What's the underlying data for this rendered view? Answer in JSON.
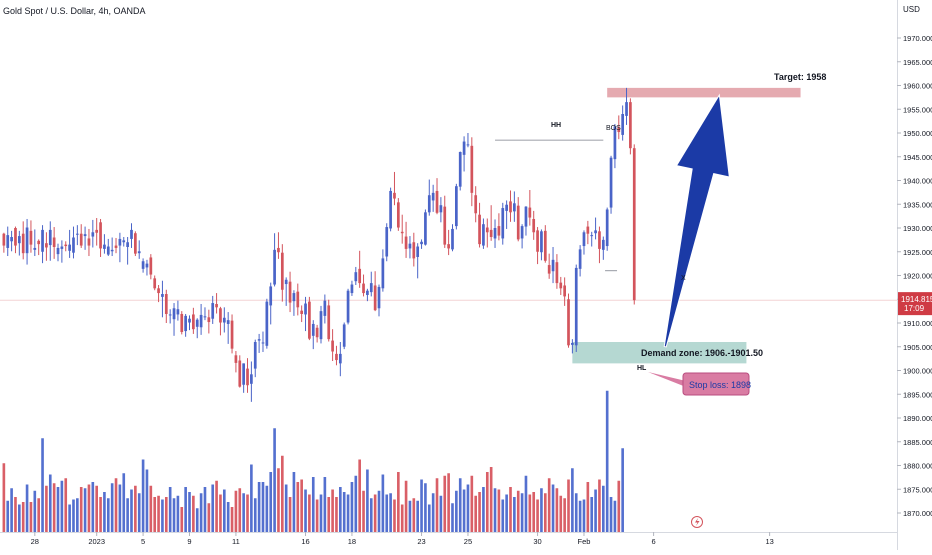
{
  "header": {
    "title": "Gold Spot / U.S. Dollar, 4h, OANDA",
    "currency": "USD"
  },
  "colors": {
    "up": "#4a64c8",
    "down": "#d3545c",
    "up_volume": "#5470cf",
    "down_volume": "#d95f67",
    "target_zone": "#e5aab0",
    "demand_zone": "#b5d8d2",
    "stop_loss": "#d97ca3",
    "arrow": "#1b3aa6",
    "price_tag": "#cf3b44"
  },
  "chart_data": {
    "type": "candlestick",
    "symbol": "XAUUSD",
    "timeframe": "4h",
    "y_axis": {
      "ylim": [
        1866,
        1978
      ],
      "ticks": [
        1970,
        1965,
        1960,
        1955,
        1950,
        1945,
        1940,
        1935,
        1930,
        1925,
        1920,
        1915,
        1910,
        1905,
        1900,
        1895,
        1890,
        1885,
        1880,
        1875,
        1870
      ],
      "tick_labels": [
        "1970.000",
        "1965.000",
        "1960.000",
        "1955.000",
        "1950.000",
        "1945.000",
        "1940.000",
        "1935.000",
        "1930.000",
        "1925.000",
        "1920.000",
        "1915.000",
        "1910.000",
        "1905.000",
        "1900.000",
        "1895.000",
        "1890.000",
        "1885.000",
        "1880.000",
        "1875.000",
        "1870.000"
      ]
    },
    "x_axis": {
      "range": [
        -1,
        180
      ],
      "ticks": [
        {
          "label": "28",
          "x": 8
        },
        {
          "label": "2023",
          "x": 24
        },
        {
          "label": "5",
          "x": 36
        },
        {
          "label": "9",
          "x": 48
        },
        {
          "label": "11",
          "x": 60
        },
        {
          "label": "16",
          "x": 78
        },
        {
          "label": "18",
          "x": 90
        },
        {
          "label": "23",
          "x": 108
        },
        {
          "label": "25",
          "x": 120
        },
        {
          "label": "30",
          "x": 138
        },
        {
          "label": "Feb",
          "x": 150
        },
        {
          "label": "6",
          "x": 168
        },
        {
          "label": "13",
          "x": 198
        }
      ]
    },
    "last_price": {
      "value": 1914.815,
      "label": "1914.815",
      "countdown": "17:09"
    },
    "levels": {
      "target": {
        "label": "Target: 1958",
        "low": 1957.5,
        "high": 1959.5,
        "x_start": 156,
        "x_end": 206
      },
      "demand_zone": {
        "label": "Demand zone: 1906.-1901.50",
        "low": 1901.5,
        "high": 1906,
        "x_start": 147,
        "x_end": 192
      },
      "stop_loss": {
        "label": "Stop loss: 1898",
        "value": 1898
      },
      "bos": {
        "label": "BOS",
        "value": 1948.5,
        "x_start": 127,
        "x_end": 155
      },
      "hh": {
        "label": "HH",
        "value": 1948.8,
        "x": 128
      },
      "hl": {
        "label": "HL",
        "value": 1903.5,
        "x": 147
      },
      "x_mark": {
        "label": "X",
        "value": 1921,
        "x": 157
      }
    },
    "arrow": {
      "from_x": 171,
      "from_y": 1905,
      "to_x": 185,
      "to_y": 1958
    },
    "candles": [
      [
        1928.8,
        1929.0,
        1924.8,
        1926.3
      ],
      [
        1925.8,
        1930.3,
        1924.1,
        1928.5
      ],
      [
        1927.2,
        1929.4,
        1925.1,
        1928.1
      ],
      [
        1930.0,
        1930.3,
        1924.7,
        1926.3
      ],
      [
        1926.8,
        1929.4,
        1924.2,
        1928.3
      ],
      [
        1928.8,
        1931.4,
        1923.4,
        1924.7
      ],
      [
        1924.7,
        1931.9,
        1922.3,
        1930.1
      ],
      [
        1929.4,
        1931.6,
        1924.8,
        1926.5
      ],
      [
        1925.4,
        1929.7,
        1924.1,
        1925.8
      ],
      [
        1927.3,
        1927.6,
        1924.3,
        1926.6
      ],
      [
        1925.0,
        1930.6,
        1922.6,
        1929.6
      ],
      [
        1926.8,
        1929.1,
        1923.1,
        1925.9
      ],
      [
        1926.4,
        1931.4,
        1923.1,
        1929.6
      ],
      [
        1928.0,
        1930.2,
        1923.5,
        1926.0
      ],
      [
        1924.5,
        1926.7,
        1923.0,
        1925.8
      ],
      [
        1925.6,
        1927.4,
        1922.7,
        1926.1
      ],
      [
        1926.5,
        1927.2,
        1925.1,
        1926.2
      ],
      [
        1925.2,
        1929.6,
        1923.7,
        1926.5
      ],
      [
        1924.8,
        1930.3,
        1923.6,
        1928.0
      ],
      [
        1928.6,
        1930.6,
        1926.4,
        1928.8
      ],
      [
        1928.8,
        1930.8,
        1925.8,
        1926.3
      ],
      [
        1928.3,
        1930.3,
        1925.4,
        1928.7
      ],
      [
        1927.8,
        1929.8,
        1924.1,
        1926.3
      ],
      [
        1928.2,
        1931.7,
        1925.9,
        1929.1
      ],
      [
        1929.6,
        1932.1,
        1926.3,
        1929.0
      ],
      [
        1931.2,
        1931.9,
        1923.9,
        1925.7
      ],
      [
        1925.6,
        1928.7,
        1924.6,
        1926.5
      ],
      [
        1924.4,
        1927.7,
        1924.1,
        1926.1
      ],
      [
        1925.1,
        1928.0,
        1924.1,
        1925.4
      ],
      [
        1926.3,
        1927.9,
        1924.7,
        1925.8
      ],
      [
        1926.3,
        1929.0,
        1922.8,
        1927.7
      ],
      [
        1927.0,
        1928.1,
        1926.1,
        1927.4
      ],
      [
        1926.0,
        1928.1,
        1922.3,
        1927.0
      ],
      [
        1927.7,
        1931.0,
        1925.8,
        1929.6
      ],
      [
        1928.9,
        1929.3,
        1924.1,
        1924.6
      ],
      [
        1924.7,
        1927.4,
        1923.5,
        1925.1
      ],
      [
        1921.4,
        1923.6,
        1920.6,
        1923.0
      ],
      [
        1921.7,
        1923.3,
        1920.0,
        1922.5
      ],
      [
        1923.8,
        1924.5,
        1919.2,
        1920.2
      ],
      [
        1919.4,
        1920.0,
        1916.9,
        1917.3
      ],
      [
        1917.3,
        1918.0,
        1914.4,
        1916.3
      ],
      [
        1915.5,
        1918.9,
        1911.2,
        1916.1
      ],
      [
        1916.1,
        1917.0,
        1910.0,
        1911.9
      ],
      [
        1911.7,
        1912.9,
        1909.9,
        1911.8
      ],
      [
        1910.8,
        1914.2,
        1907.3,
        1913.1
      ],
      [
        1911.8,
        1914.7,
        1910.5,
        1912.9
      ],
      [
        1911.9,
        1912.5,
        1907.6,
        1908.1
      ],
      [
        1908.3,
        1911.9,
        1907.1,
        1911.5
      ],
      [
        1910.1,
        1911.6,
        1908.5,
        1910.9
      ],
      [
        1911.8,
        1913.2,
        1907.7,
        1908.7
      ],
      [
        1909.2,
        1911.0,
        1906.8,
        1910.7
      ],
      [
        1909.1,
        1914.0,
        1907.5,
        1911.7
      ],
      [
        1911.3,
        1913.3,
        1910.6,
        1911.4
      ],
      [
        1911.2,
        1912.8,
        1907.8,
        1910.2
      ],
      [
        1910.9,
        1915.7,
        1909.8,
        1914.2
      ],
      [
        1914.0,
        1916.3,
        1912.0,
        1913.3
      ],
      [
        1913.1,
        1913.4,
        1907.4,
        1910.1
      ],
      [
        1910.1,
        1913.3,
        1908.0,
        1911.1
      ],
      [
        1909.8,
        1912.3,
        1905.6,
        1910.6
      ],
      [
        1910.5,
        1911.8,
        1903.6,
        1904.6
      ],
      [
        1903.2,
        1904.1,
        1899.6,
        1901.6
      ],
      [
        1902.1,
        1903.2,
        1896.4,
        1896.6
      ],
      [
        1897.0,
        1901.5,
        1895.3,
        1901.5
      ],
      [
        1900.4,
        1902.6,
        1895.3,
        1896.9
      ],
      [
        1897.2,
        1901.9,
        1893.4,
        1899.2
      ],
      [
        1900.4,
        1906.5,
        1898.6,
        1906.0
      ],
      [
        1906.3,
        1907.7,
        1903.7,
        1906.6
      ],
      [
        1905.9,
        1908.2,
        1903.9,
        1905.9
      ],
      [
        1905.2,
        1915.1,
        1904.6,
        1914.5
      ],
      [
        1913.7,
        1918.5,
        1909.7,
        1917.7
      ],
      [
        1918.1,
        1928.9,
        1917.7,
        1925.4
      ],
      [
        1925.8,
        1929.1,
        1923.5,
        1924.9
      ],
      [
        1924.8,
        1926.6,
        1914.5,
        1917.0
      ],
      [
        1918.2,
        1919.6,
        1913.6,
        1919.1
      ],
      [
        1918.7,
        1920.8,
        1912.3,
        1914.3
      ],
      [
        1914.6,
        1916.9,
        1911.5,
        1916.3
      ],
      [
        1916.6,
        1918.3,
        1911.6,
        1913.3
      ],
      [
        1912.6,
        1913.7,
        1910.2,
        1911.9
      ],
      [
        1911.8,
        1915.5,
        1908.3,
        1914.1
      ],
      [
        1914.5,
        1915.5,
        1906.4,
        1906.7
      ],
      [
        1907.3,
        1910.6,
        1904.5,
        1909.8
      ],
      [
        1909.0,
        1909.6,
        1905.9,
        1907.0
      ],
      [
        1906.6,
        1913.6,
        1905.7,
        1912.5
      ],
      [
        1911.5,
        1916.0,
        1909.9,
        1914.7
      ],
      [
        1913.7,
        1914.9,
        1906.1,
        1906.6
      ],
      [
        1906.3,
        1908.7,
        1902.0,
        1904.0
      ],
      [
        1903.5,
        1905.2,
        1901.1,
        1902.2
      ],
      [
        1901.5,
        1906.0,
        1898.8,
        1903.5
      ],
      [
        1905.0,
        1910.1,
        1904.5,
        1909.7
      ],
      [
        1910.1,
        1917.2,
        1909.7,
        1916.8
      ],
      [
        1916.3,
        1918.9,
        1915.7,
        1918.1
      ],
      [
        1918.8,
        1921.8,
        1918.0,
        1920.7
      ],
      [
        1921.4,
        1925.2,
        1917.4,
        1918.4
      ],
      [
        1918.3,
        1920.2,
        1915.6,
        1916.3
      ],
      [
        1915.9,
        1917.2,
        1914.6,
        1916.8
      ],
      [
        1916.5,
        1920.8,
        1915.6,
        1918.4
      ],
      [
        1917.9,
        1920.9,
        1912.5,
        1912.7
      ],
      [
        1913.1,
        1918.1,
        1911.4,
        1917.6
      ],
      [
        1917.3,
        1925.5,
        1916.6,
        1923.6
      ],
      [
        1924.0,
        1931.0,
        1923.0,
        1930.2
      ],
      [
        1929.9,
        1938.5,
        1929.3,
        1937.8
      ],
      [
        1937.4,
        1941.8,
        1934.8,
        1936.2
      ],
      [
        1935.4,
        1936.3,
        1929.4,
        1930.1
      ],
      [
        1929.2,
        1932.8,
        1926.7,
        1928.9
      ],
      [
        1928.2,
        1931.3,
        1923.7,
        1925.6
      ],
      [
        1925.7,
        1928.3,
        1923.6,
        1926.7
      ],
      [
        1927.0,
        1929.0,
        1921.9,
        1923.6
      ],
      [
        1923.9,
        1926.8,
        1919.4,
        1926.1
      ],
      [
        1926.6,
        1927.6,
        1925.6,
        1927.1
      ],
      [
        1926.5,
        1933.9,
        1926.3,
        1933.3
      ],
      [
        1933.3,
        1940.2,
        1932.6,
        1936.9
      ],
      [
        1935.8,
        1939.1,
        1933.4,
        1937.4
      ],
      [
        1937.8,
        1940.5,
        1932.9,
        1933.2
      ],
      [
        1933.3,
        1936.5,
        1931.2,
        1934.8
      ],
      [
        1934.5,
        1936.8,
        1925.8,
        1926.5
      ],
      [
        1926.6,
        1929.6,
        1924.3,
        1925.7
      ],
      [
        1925.5,
        1930.8,
        1925.1,
        1929.8
      ],
      [
        1930.4,
        1939.3,
        1929.7,
        1938.8
      ],
      [
        1938.7,
        1946.1,
        1937.9,
        1946.0
      ],
      [
        1945.4,
        1949.3,
        1941.9,
        1948.2
      ],
      [
        1947.5,
        1950.0,
        1947.0,
        1947.6
      ],
      [
        1947.3,
        1949.1,
        1934.6,
        1937.4
      ],
      [
        1936.9,
        1938.8,
        1931.2,
        1933.1
      ],
      [
        1932.8,
        1935.3,
        1925.9,
        1926.6
      ],
      [
        1926.3,
        1932.0,
        1925.6,
        1930.8
      ],
      [
        1930.1,
        1932.0,
        1925.9,
        1929.1
      ],
      [
        1929.6,
        1934.8,
        1927.3,
        1928.1
      ],
      [
        1927.8,
        1931.8,
        1925.8,
        1930.0
      ],
      [
        1930.4,
        1933.1,
        1927.4,
        1928.4
      ],
      [
        1927.8,
        1935.3,
        1926.5,
        1934.2
      ],
      [
        1933.6,
        1935.8,
        1929.8,
        1934.9
      ],
      [
        1935.6,
        1937.9,
        1931.3,
        1933.3
      ],
      [
        1933.5,
        1937.7,
        1931.3,
        1935.2
      ],
      [
        1934.7,
        1936.5,
        1927.2,
        1927.6
      ],
      [
        1927.8,
        1930.8,
        1925.7,
        1930.4
      ],
      [
        1930.3,
        1934.6,
        1928.4,
        1934.5
      ],
      [
        1934.3,
        1938.0,
        1930.5,
        1932.2
      ],
      [
        1931.9,
        1933.6,
        1927.5,
        1929.1
      ],
      [
        1929.5,
        1930.2,
        1922.4,
        1925.0
      ],
      [
        1924.9,
        1929.7,
        1923.2,
        1929.3
      ],
      [
        1929.4,
        1930.6,
        1922.7,
        1923.1
      ],
      [
        1922.2,
        1924.6,
        1919.3,
        1920.4
      ],
      [
        1920.9,
        1926.0,
        1918.4,
        1923.3
      ],
      [
        1922.8,
        1924.5,
        1917.2,
        1918.4
      ],
      [
        1918.5,
        1919.7,
        1915.9,
        1917.3
      ],
      [
        1917.9,
        1919.6,
        1913.6,
        1915.6
      ],
      [
        1915.0,
        1916.2,
        1904.8,
        1905.3
      ],
      [
        1905.4,
        1906.6,
        1903.6,
        1905.8
      ],
      [
        1905.3,
        1922.3,
        1903.9,
        1921.6
      ],
      [
        1921.4,
        1926.4,
        1919.8,
        1925.5
      ],
      [
        1926.2,
        1929.5,
        1924.4,
        1929.1
      ],
      [
        1930.3,
        1931.5,
        1926.6,
        1928.8
      ],
      [
        1928.3,
        1929.2,
        1926.1,
        1928.5
      ],
      [
        1928.9,
        1932.2,
        1927.6,
        1929.5
      ],
      [
        1929.3,
        1930.3,
        1922.6,
        1925.6
      ],
      [
        1925.4,
        1928.2,
        1923.3,
        1927.5
      ],
      [
        1926.2,
        1934.3,
        1925.2,
        1933.9
      ],
      [
        1934.3,
        1945.2,
        1933.0,
        1944.8
      ],
      [
        1944.5,
        1951.9,
        1942.6,
        1951.4
      ],
      [
        1951.1,
        1953.7,
        1948.7,
        1950.2
      ],
      [
        1949.6,
        1955.8,
        1948.4,
        1954.0
      ],
      [
        1953.6,
        1959.5,
        1951.7,
        1956.5
      ],
      [
        1956.5,
        1957.3,
        1945.5,
        1946.8
      ],
      [
        1946.8,
        1947.6,
        1913.9,
        1914.8
      ]
    ],
    "volumes": [
      55,
      25,
      35,
      28,
      22,
      24,
      38,
      24,
      33,
      27,
      75,
      37,
      46,
      39,
      36,
      41,
      43,
      22,
      26,
      27,
      36,
      35,
      38,
      40,
      37,
      28,
      32,
      27,
      39,
      43,
      38,
      47,
      27,
      34,
      37,
      31,
      58,
      50,
      37,
      28,
      29,
      26,
      28,
      36,
      27,
      29,
      20,
      36,
      32,
      29,
      19,
      31,
      36,
      23,
      38,
      41,
      30,
      34,
      24,
      20,
      33,
      35,
      31,
      30,
      54,
      27,
      40,
      40,
      37,
      48,
      83,
      51,
      61,
      38,
      28,
      48,
      40,
      42,
      34,
      30,
      44,
      26,
      30,
      44,
      28,
      34,
      28,
      36,
      32,
      30,
      40,
      45,
      58,
      33,
      50,
      27,
      30,
      33,
      46,
      30,
      31,
      26,
      48,
      22,
      41,
      25,
      27,
      25,
      42,
      39,
      22,
      31,
      43,
      29,
      45,
      47,
      23,
      33,
      43,
      34,
      38,
      45,
      29,
      32,
      36,
      48,
      52,
      35,
      34,
      26,
      30,
      36,
      28,
      33,
      31,
      45,
      30,
      32,
      26,
      35,
      31,
      43,
      38,
      35,
      29,
      27,
      42,
      51,
      31,
      25,
      26,
      40,
      28,
      34,
      42,
      37,
      113,
      28,
      25,
      41,
      67
    ]
  }
}
